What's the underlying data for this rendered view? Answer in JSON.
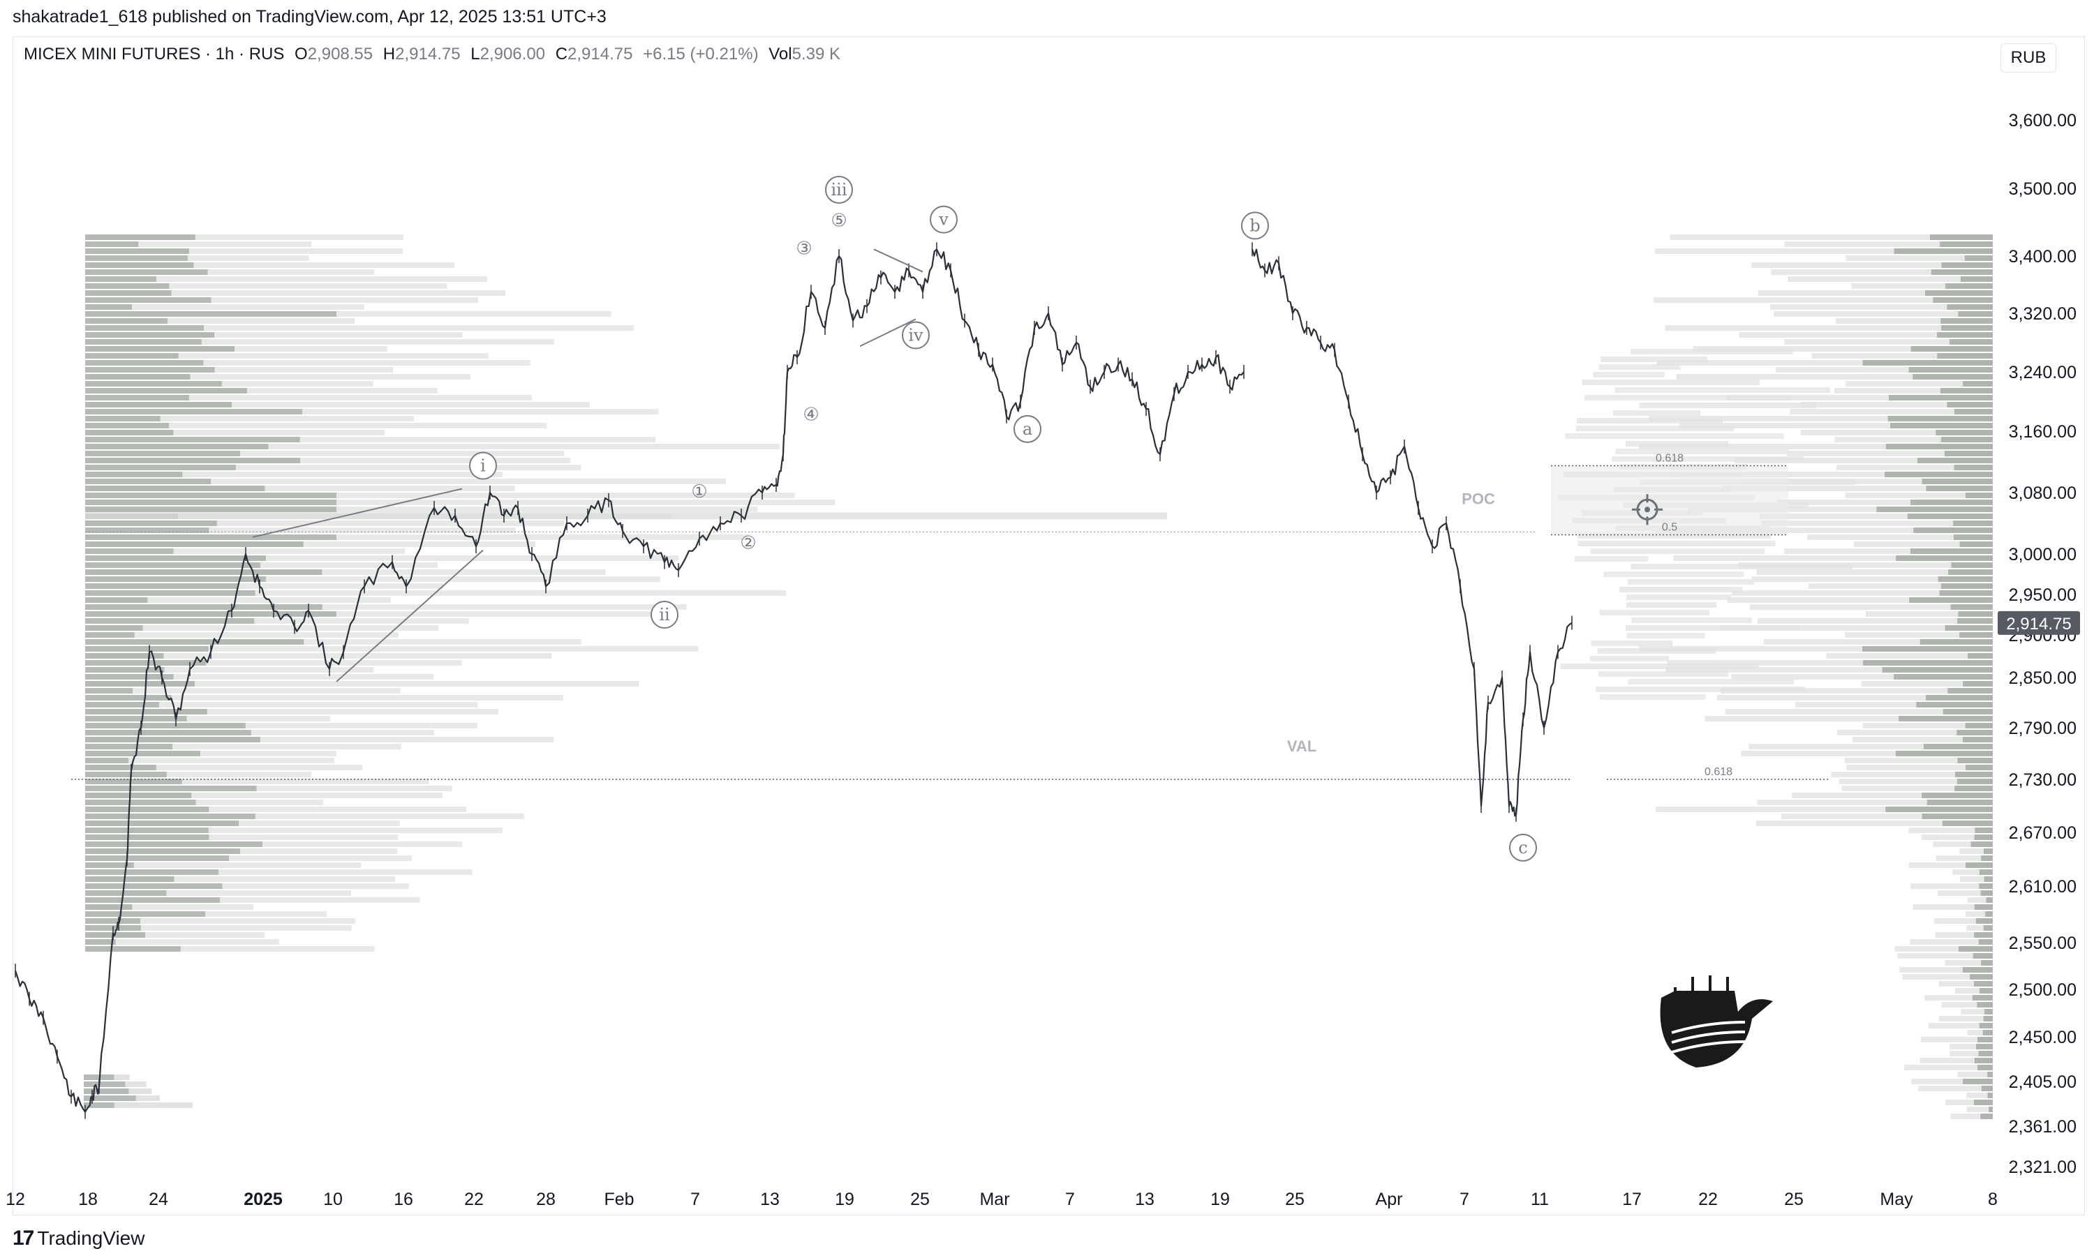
{
  "header": {
    "publisher_line": "shakatrade1_618 published on TradingView.com, Apr 12, 2025 13:51 UTC+3"
  },
  "legend": {
    "symbol": "MICEX MINI FUTURES · 1h · RUS",
    "open_label": "O",
    "open": "2,908.55",
    "high_label": "H",
    "high": "2,914.75",
    "low_label": "L",
    "low": "2,906.00",
    "close_label": "C",
    "close": "2,914.75",
    "change": "+6.15 (+0.21%)",
    "vol_label": "Vol",
    "vol": "5.39 K"
  },
  "currency_button": "RUB",
  "footer": {
    "brand": "TradingView",
    "brand_icon": "tradingview-logo-icon"
  },
  "colors": {
    "candle": "#2a2e39",
    "profile_dark": "#8a918b",
    "profile_light": "#dfe2df",
    "axis_text": "#131722",
    "label_gray": "#b2b5be"
  },
  "chart_data": {
    "type": "candlestick-line",
    "symbol": "MICEX MINI FUTURES",
    "interval": "1h",
    "ylim": [
      2300,
      3660
    ],
    "y_ticks": [
      "3,600.00",
      "3,500.00",
      "3,400.00",
      "3,320.00",
      "3,240.00",
      "3,160.00",
      "3,080.00",
      "3,000.00",
      "2,950.00",
      "2,900.00",
      "2,850.00",
      "2,790.00",
      "2,730.00",
      "2,670.00",
      "2,610.00",
      "2,550.00",
      "2,500.00",
      "2,450.00",
      "2,405.00",
      "2,361.00",
      "2,321.00"
    ],
    "x_ticks": [
      "12",
      "18",
      "24",
      "2025",
      "10",
      "16",
      "22",
      "28",
      "Feb",
      "7",
      "13",
      "19",
      "25",
      "Mar",
      "7",
      "13",
      "19",
      "25",
      "Apr",
      "7",
      "11",
      "17",
      "22",
      "25",
      "May",
      "8"
    ],
    "last_price_label": "2,914.75",
    "last_price": 2914.75,
    "price_path": [
      {
        "x": 0,
        "y": 2520
      },
      {
        "x": 1,
        "y": 2490
      },
      {
        "x": 2,
        "y": 2470
      },
      {
        "x": 3,
        "y": 2430
      },
      {
        "x": 4,
        "y": 2390
      },
      {
        "x": 5,
        "y": 2375
      },
      {
        "x": 5.5,
        "y": 2390
      },
      {
        "x": 6,
        "y": 2400
      },
      {
        "x": 7,
        "y": 2560
      },
      {
        "x": 7.4,
        "y": 2570
      },
      {
        "x": 8,
        "y": 2640
      },
      {
        "x": 8.3,
        "y": 2740
      },
      {
        "x": 9,
        "y": 2790
      },
      {
        "x": 9.6,
        "y": 2880
      },
      {
        "x": 10.5,
        "y": 2850
      },
      {
        "x": 11.5,
        "y": 2800
      },
      {
        "x": 12.5,
        "y": 2860
      },
      {
        "x": 14,
        "y": 2880
      },
      {
        "x": 15.5,
        "y": 2930
      },
      {
        "x": 16.5,
        "y": 3000
      },
      {
        "x": 17.5,
        "y": 2960
      },
      {
        "x": 18.5,
        "y": 2930
      },
      {
        "x": 20,
        "y": 2910
      },
      {
        "x": 21,
        "y": 2930
      },
      {
        "x": 22.5,
        "y": 2860
      },
      {
        "x": 23.5,
        "y": 2880
      },
      {
        "x": 25,
        "y": 2960
      },
      {
        "x": 27,
        "y": 2990
      },
      {
        "x": 28,
        "y": 2960
      },
      {
        "x": 30,
        "y": 3060
      },
      {
        "x": 31.5,
        "y": 3050
      },
      {
        "x": 33,
        "y": 3010
      },
      {
        "x": 34,
        "y": 3080
      },
      {
        "x": 35,
        "y": 3050
      },
      {
        "x": 36,
        "y": 3060
      },
      {
        "x": 37,
        "y": 3000
      },
      {
        "x": 38,
        "y": 2960
      },
      {
        "x": 39.5,
        "y": 3040
      },
      {
        "x": 41,
        "y": 3050
      },
      {
        "x": 42.5,
        "y": 3070
      },
      {
        "x": 43.5,
        "y": 3030
      },
      {
        "x": 45,
        "y": 3010
      },
      {
        "x": 46.5,
        "y": 2990
      },
      {
        "x": 47.5,
        "y": 2980
      },
      {
        "x": 49,
        "y": 3020
      },
      {
        "x": 50.5,
        "y": 3040
      },
      {
        "x": 52,
        "y": 3050
      },
      {
        "x": 53.5,
        "y": 3080
      },
      {
        "x": 54.5,
        "y": 3090
      },
      {
        "x": 55,
        "y": 3130
      },
      {
        "x": 55.3,
        "y": 3240
      },
      {
        "x": 56,
        "y": 3260
      },
      {
        "x": 57,
        "y": 3350
      },
      {
        "x": 58,
        "y": 3300
      },
      {
        "x": 59,
        "y": 3400
      },
      {
        "x": 60,
        "y": 3310
      },
      {
        "x": 61,
        "y": 3330
      },
      {
        "x": 62,
        "y": 3370
      },
      {
        "x": 63,
        "y": 3350
      },
      {
        "x": 64,
        "y": 3380
      },
      {
        "x": 65,
        "y": 3350
      },
      {
        "x": 66,
        "y": 3410
      },
      {
        "x": 67,
        "y": 3380
      },
      {
        "x": 68,
        "y": 3310
      },
      {
        "x": 69,
        "y": 3270
      },
      {
        "x": 70,
        "y": 3250
      },
      {
        "x": 71,
        "y": 3180
      },
      {
        "x": 72,
        "y": 3200
      },
      {
        "x": 73,
        "y": 3300
      },
      {
        "x": 74,
        "y": 3320
      },
      {
        "x": 75,
        "y": 3250
      },
      {
        "x": 76,
        "y": 3280
      },
      {
        "x": 77,
        "y": 3220
      },
      {
        "x": 78,
        "y": 3240
      },
      {
        "x": 79,
        "y": 3250
      },
      {
        "x": 80,
        "y": 3230
      },
      {
        "x": 81,
        "y": 3190
      },
      {
        "x": 82,
        "y": 3130
      },
      {
        "x": 83,
        "y": 3210
      },
      {
        "x": 84,
        "y": 3240
      },
      {
        "x": 85,
        "y": 3250
      },
      {
        "x": 86,
        "y": 3260
      },
      {
        "x": 87,
        "y": 3220
      },
      {
        "x": 88,
        "y": 3240
      },
      {
        "x": 88.5,
        "y": null
      },
      {
        "x": 88.6,
        "y": 3410
      },
      {
        "x": 89.5,
        "y": 3380
      },
      {
        "x": 90.5,
        "y": 3390
      },
      {
        "x": 91.5,
        "y": 3320
      },
      {
        "x": 92.5,
        "y": 3300
      },
      {
        "x": 93.5,
        "y": 3280
      },
      {
        "x": 94.5,
        "y": 3270
      },
      {
        "x": 95.5,
        "y": 3200
      },
      {
        "x": 96.5,
        "y": 3130
      },
      {
        "x": 97.5,
        "y": 3080
      },
      {
        "x": 98.5,
        "y": 3100
      },
      {
        "x": 99.5,
        "y": 3140
      },
      {
        "x": 100.5,
        "y": 3060
      },
      {
        "x": 101.5,
        "y": 3010
      },
      {
        "x": 102.5,
        "y": 3040
      },
      {
        "x": 103.5,
        "y": 2960
      },
      {
        "x": 104.5,
        "y": 2860
      },
      {
        "x": 105,
        "y": 2700
      },
      {
        "x": 105.5,
        "y": 2820
      },
      {
        "x": 106.5,
        "y": 2850
      },
      {
        "x": 107,
        "y": 2700
      },
      {
        "x": 107.5,
        "y": 2690
      },
      {
        "x": 108,
        "y": 2800
      },
      {
        "x": 108.5,
        "y": 2880
      },
      {
        "x": 109.5,
        "y": 2790
      },
      {
        "x": 110.5,
        "y": 2880
      },
      {
        "x": 111.5,
        "y": 2915
      }
    ],
    "wave_labels": [
      {
        "text": "i",
        "x": 33.5,
        "y": 3115
      },
      {
        "text": "ii",
        "x": 46.5,
        "y": 2925
      },
      {
        "text": "iii",
        "x": 59,
        "y": 3498
      },
      {
        "text": "iv",
        "x": 64.5,
        "y": 3290
      },
      {
        "text": "v",
        "x": 66.5,
        "y": 3454
      },
      {
        "text": "a",
        "x": 72.5,
        "y": 3163
      },
      {
        "text": "b",
        "x": 88.8,
        "y": 3445
      },
      {
        "text": "c",
        "x": 108,
        "y": 2653
      }
    ],
    "sub_wave_labels": [
      {
        "text": "①",
        "x": 49,
        "y": 3082
      },
      {
        "text": "②",
        "x": 52.5,
        "y": 3015
      },
      {
        "text": "③",
        "x": 56.5,
        "y": 3412
      },
      {
        "text": "④",
        "x": 57,
        "y": 3183
      },
      {
        "text": "⑤",
        "x": 59,
        "y": 3453
      }
    ],
    "trend_lines": [
      {
        "x1": 17,
        "y1": 3022,
        "x2": 32,
        "y2": 3085
      },
      {
        "x1": 23,
        "y1": 2845,
        "x2": 33.5,
        "y2": 3005
      },
      {
        "x1": 61.5,
        "y1": 3410,
        "x2": 65,
        "y2": 3378
      },
      {
        "x1": 60.5,
        "y1": 3275,
        "x2": 64.5,
        "y2": 3312
      }
    ],
    "levels": [
      {
        "label": "VAL",
        "price": 2730,
        "x_start": 4,
        "x_end": 111.5
      },
      {
        "label": "0.618",
        "price": 2730,
        "x_start": 114,
        "x_end": 130
      },
      {
        "label": "0.618",
        "price": 3115,
        "x_start": 110,
        "x_end": 127
      },
      {
        "label": "0.5",
        "price": 3025,
        "x_start": 110,
        "x_end": 127
      }
    ],
    "poc": {
      "label": "POC",
      "price": 3047
    },
    "box": {
      "x1": 110,
      "x2": 127,
      "top": 3115,
      "bottom": 3025
    }
  }
}
